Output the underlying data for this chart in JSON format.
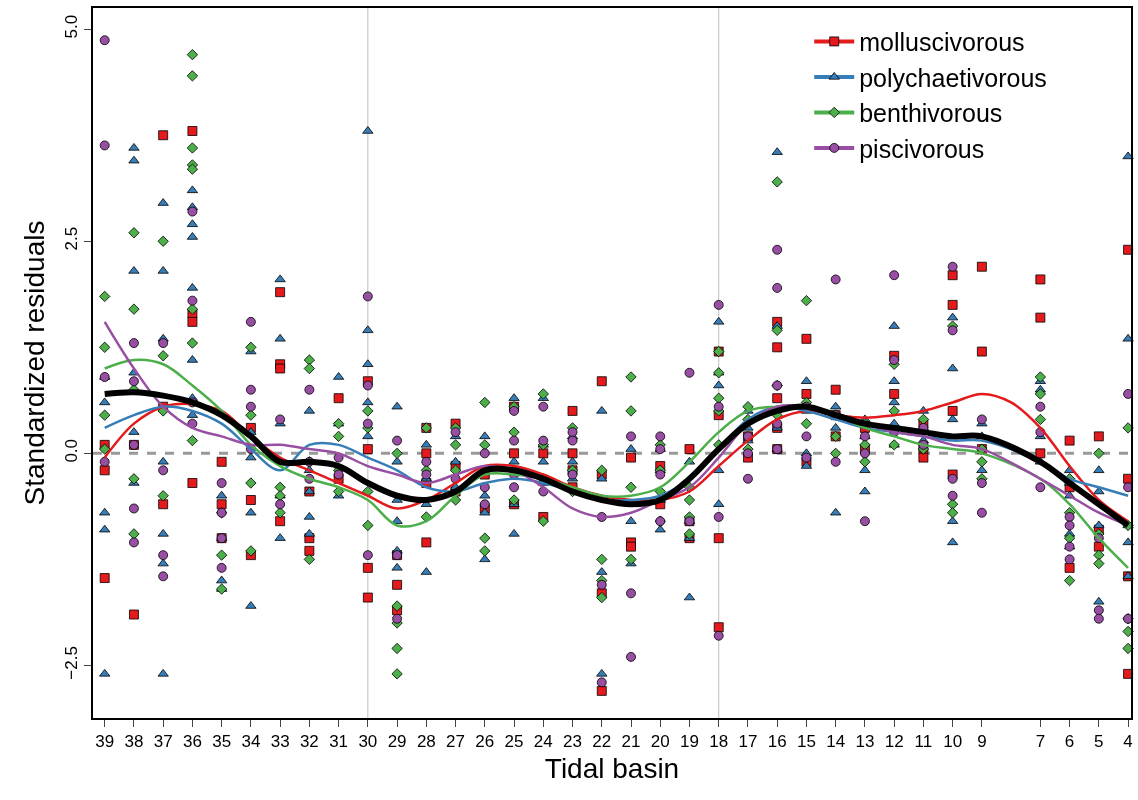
{
  "chart_data": {
    "type": "scatter",
    "xlabel": "Tidal basin",
    "ylabel": "Standardized residuals",
    "xlim": [
      39.4,
      3.9
    ],
    "xticks": [
      39,
      38,
      37,
      36,
      35,
      34,
      33,
      32,
      31,
      30,
      29,
      28,
      27,
      26,
      25,
      24,
      23,
      22,
      21,
      20,
      19,
      18,
      17,
      16,
      15,
      14,
      13,
      12,
      11,
      10,
      9,
      7,
      6,
      5,
      4
    ],
    "ylim": [
      -3.12,
      5.25
    ],
    "yticks": [
      {
        "value": -2.5,
        "label": "−2.5"
      },
      {
        "value": 0,
        "label": "0.0"
      },
      {
        "value": 2.5,
        "label": "2.5"
      },
      {
        "value": 5,
        "label": "5.0"
      }
    ],
    "grid": false,
    "legend": "top right",
    "ref_lines": [
      {
        "axis": "x",
        "value": 30,
        "color": "#bebebe",
        "line_style": "solid"
      },
      {
        "axis": "x",
        "value": 18,
        "color": "#bebebe",
        "line_style": "solid"
      },
      {
        "axis": "y",
        "value": 0,
        "color": "#999999",
        "line_style": "dashed"
      }
    ],
    "series": [
      {
        "name": "molluscivorous",
        "color": "#e41a1c",
        "marker": "square",
        "x": [
          39,
          39,
          39,
          38,
          38,
          37,
          37,
          37,
          36,
          36,
          36,
          36,
          35,
          35,
          35,
          34,
          34,
          34,
          33,
          33,
          33,
          33,
          32,
          32,
          32,
          31,
          31,
          30,
          30,
          30,
          30,
          29,
          29,
          29,
          28,
          28,
          28,
          28,
          27,
          27,
          27,
          26,
          26,
          25,
          25,
          25,
          24,
          24,
          23,
          23,
          23,
          23,
          22,
          22,
          22,
          22,
          21,
          21,
          21,
          20,
          20,
          19,
          19,
          19,
          18,
          18,
          18,
          18,
          17,
          17,
          16,
          16,
          16,
          16,
          16,
          15,
          15,
          15,
          14,
          14,
          14,
          13,
          13,
          12,
          12,
          11,
          11,
          11,
          10,
          10,
          10,
          10,
          9,
          9,
          9,
          7,
          7,
          7,
          6,
          6,
          6,
          5,
          5,
          5,
          4,
          4,
          4,
          4
        ],
        "values": [
          -0.2,
          -1.47,
          0.1,
          -1.9,
          0.1,
          3.75,
          -0.6,
          0.55,
          3.8,
          1.65,
          1.55,
          -0.35,
          -0.1,
          -0.6,
          -1.0,
          -0.55,
          -1.2,
          0.3,
          1.9,
          1.05,
          1.0,
          -0.8,
          -0.45,
          -1.0,
          -1.15,
          0.65,
          -0.3,
          0.85,
          0.05,
          -1.35,
          -1.7,
          -1.2,
          -1.55,
          -1.85,
          0.3,
          0.0,
          -0.35,
          -1.05,
          0.35,
          -0.15,
          -0.45,
          -0.25,
          -0.65,
          0.55,
          0.0,
          -0.6,
          0.0,
          -0.75,
          0.5,
          0.0,
          -0.2,
          -0.4,
          0.85,
          -0.25,
          -1.65,
          -2.8,
          -0.05,
          -1.05,
          -1.1,
          -0.15,
          -0.6,
          0.05,
          -0.8,
          -1.0,
          1.2,
          0.45,
          -1.0,
          -2.05,
          0.2,
          -0.05,
          1.55,
          1.25,
          0.65,
          0.3,
          0.05,
          1.35,
          0.7,
          -0.1,
          0.75,
          0.45,
          0.2,
          0.05,
          0.3,
          1.15,
          0.7,
          0.35,
          0.05,
          -0.05,
          2.1,
          1.75,
          0.5,
          -0.25,
          2.2,
          1.2,
          0.05,
          2.05,
          1.6,
          0.0,
          0.15,
          -0.4,
          -1.35,
          0.2,
          -0.9,
          -1.1,
          2.4,
          -0.3,
          -1.45,
          -2.6
        ]
      },
      {
        "name": "polychaetivorous",
        "color": "#377eb8",
        "marker": "triangle",
        "x": [
          39,
          39,
          39,
          39,
          39,
          38,
          38,
          38,
          38,
          38,
          38,
          37,
          37,
          37,
          37,
          37,
          37,
          37,
          36,
          36,
          36,
          36,
          36,
          36,
          36,
          36,
          35,
          35,
          35,
          35,
          34,
          34,
          34,
          34,
          34,
          33,
          33,
          33,
          33,
          33,
          32,
          32,
          32,
          32,
          32,
          31,
          31,
          31,
          30,
          30,
          30,
          30,
          30,
          29,
          29,
          29,
          29,
          29,
          29,
          28,
          28,
          28,
          28,
          27,
          27,
          27,
          26,
          26,
          26,
          26,
          25,
          25,
          25,
          25,
          24,
          24,
          24,
          24,
          23,
          23,
          23,
          22,
          22,
          22,
          22,
          21,
          21,
          21,
          20,
          20,
          20,
          20,
          19,
          19,
          19,
          19,
          18,
          18,
          18,
          18,
          18,
          17,
          17,
          17,
          16,
          16,
          16,
          16,
          15,
          15,
          15,
          15,
          14,
          14,
          14,
          13,
          13,
          13,
          13,
          12,
          12,
          12,
          12,
          12,
          11,
          11,
          11,
          10,
          10,
          10,
          10,
          10,
          9,
          9,
          9,
          7,
          7,
          7,
          7,
          6,
          6,
          6,
          6,
          6,
          5,
          5,
          5,
          5,
          4,
          4,
          4,
          4,
          4
        ],
        "values": [
          0.9,
          0.6,
          -0.7,
          -0.9,
          -2.6,
          3.6,
          3.45,
          2.15,
          0.95,
          0.25,
          -0.35,
          2.95,
          2.15,
          1.35,
          -0.1,
          -0.95,
          -1.3,
          -2.6,
          3.1,
          2.9,
          2.7,
          2.55,
          1.95,
          1.1,
          0.65,
          0.45,
          -0.5,
          -1.0,
          -1.5,
          -1.6,
          1.2,
          0.25,
          -0.05,
          -0.7,
          -1.8,
          2.05,
          1.35,
          0.35,
          -0.5,
          -1.0,
          0.5,
          -0.2,
          -0.45,
          -0.75,
          -0.95,
          0.9,
          0.35,
          -0.5,
          3.8,
          1.45,
          1.05,
          0.6,
          0.2,
          0.55,
          -0.1,
          -0.55,
          -0.8,
          -1.15,
          -1.35,
          0.1,
          -0.3,
          -0.6,
          -1.4,
          0.2,
          -0.1,
          -0.4,
          0.2,
          -0.5,
          -0.7,
          -1.25,
          0.65,
          -0.1,
          -0.6,
          -0.95,
          0.65,
          0.1,
          -0.1,
          -0.35,
          0.2,
          -0.1,
          -0.3,
          0.5,
          -0.3,
          -1.4,
          -2.6,
          0.05,
          -0.8,
          -1.3,
          0.05,
          -0.2,
          -0.55,
          -0.9,
          -0.1,
          -0.8,
          -1.0,
          -1.7,
          1.55,
          0.95,
          0.8,
          -0.2,
          -0.6,
          0.5,
          0.3,
          0.15,
          3.55,
          1.5,
          0.3,
          0.05,
          0.85,
          0.5,
          0.0,
          -0.15,
          0.55,
          0.3,
          -0.7,
          0.4,
          0.2,
          -0.2,
          -0.45,
          1.5,
          0.85,
          0.6,
          0.35,
          0.1,
          0.5,
          0.3,
          0.15,
          1.6,
          1.0,
          0.4,
          -0.8,
          -1.05,
          0.35,
          0.2,
          -0.2,
          0.85,
          0.75,
          0.2,
          -0.1,
          -0.2,
          -0.35,
          -0.5,
          -0.95,
          -1.1,
          -0.2,
          -0.45,
          -0.85,
          -1.75,
          3.5,
          1.35,
          -0.85,
          -1.05,
          -1.45
        ]
      },
      {
        "name": "benthivorous",
        "color": "#4daf4a",
        "marker": "diamond",
        "x": [
          39,
          39,
          39,
          39,
          38,
          38,
          38,
          38,
          38,
          37,
          37,
          37,
          37,
          36,
          36,
          36,
          36,
          36,
          36,
          36,
          36,
          35,
          35,
          35,
          34,
          34,
          34,
          34,
          33,
          33,
          33,
          32,
          32,
          32,
          32,
          31,
          31,
          31,
          31,
          30,
          30,
          30,
          30,
          29,
          29,
          29,
          29,
          29,
          28,
          28,
          28,
          27,
          27,
          27,
          27,
          26,
          26,
          26,
          26,
          25,
          25,
          25,
          25,
          24,
          24,
          24,
          24,
          23,
          23,
          23,
          22,
          22,
          22,
          22,
          21,
          21,
          21,
          21,
          20,
          20,
          20,
          20,
          19,
          19,
          19,
          19,
          18,
          18,
          18,
          18,
          18,
          17,
          17,
          17,
          16,
          16,
          16,
          16,
          15,
          15,
          15,
          14,
          14,
          14,
          13,
          13,
          13,
          12,
          12,
          12,
          11,
          11,
          10,
          10,
          10,
          9,
          9,
          9,
          7,
          7,
          7,
          6,
          6,
          6,
          6,
          5,
          5,
          5,
          5,
          4,
          4,
          4,
          4,
          4
        ],
        "values": [
          1.85,
          1.25,
          0.45,
          0.05,
          2.6,
          1.7,
          0.75,
          -0.3,
          -0.95,
          2.5,
          1.15,
          0.5,
          -0.5,
          4.7,
          4.45,
          3.6,
          3.4,
          3.35,
          1.7,
          1.3,
          0.15,
          -0.7,
          -1.2,
          -1.6,
          1.25,
          0.45,
          -0.35,
          -1.15,
          -0.4,
          -0.5,
          -0.7,
          1.1,
          1.0,
          -0.1,
          -1.25,
          0.35,
          0.2,
          -0.2,
          -0.45,
          0.5,
          0.3,
          -0.45,
          -0.85,
          0.0,
          -1.8,
          -2.0,
          -2.3,
          -2.6,
          0.3,
          -0.2,
          -0.75,
          0.3,
          0.1,
          -0.2,
          -0.55,
          0.6,
          0.1,
          -1.0,
          -1.15,
          0.55,
          0.25,
          -0.2,
          -0.55,
          0.7,
          0.1,
          -0.3,
          -0.8,
          0.3,
          -0.2,
          -0.45,
          -0.2,
          -1.25,
          -1.5,
          -1.7,
          0.9,
          0.5,
          -0.4,
          -1.25,
          0.1,
          -0.2,
          -0.45,
          -0.8,
          -0.4,
          -0.55,
          -0.75,
          -0.95,
          1.2,
          0.95,
          0.65,
          0.5,
          0.1,
          0.55,
          0.4,
          0.05,
          3.2,
          1.45,
          0.8,
          0.45,
          1.8,
          0.6,
          0.35,
          0.45,
          0.2,
          0.0,
          0.35,
          0.1,
          -0.1,
          1.05,
          0.5,
          0.1,
          0.4,
          0.05,
          1.5,
          -0.6,
          -0.7,
          0.05,
          -0.1,
          -0.3,
          0.9,
          0.7,
          0.4,
          -0.3,
          -0.7,
          -1.0,
          -1.5,
          0.0,
          -0.95,
          -1.2,
          -1.3,
          0.3,
          -0.85,
          -1.95,
          -2.1,
          -2.3
        ]
      },
      {
        "name": "piscivorous",
        "color": "#984ea3",
        "marker": "circle",
        "x": [
          39,
          39,
          39,
          39,
          38,
          38,
          38,
          38,
          38,
          37,
          37,
          37,
          37,
          36,
          36,
          36,
          36,
          35,
          35,
          35,
          35,
          34,
          34,
          34,
          34,
          33,
          33,
          32,
          32,
          32,
          31,
          31,
          30,
          30,
          30,
          30,
          29,
          29,
          29,
          28,
          28,
          27,
          27,
          26,
          26,
          26,
          26,
          25,
          25,
          25,
          25,
          24,
          24,
          24,
          23,
          23,
          23,
          22,
          22,
          22,
          21,
          21,
          21,
          20,
          20,
          20,
          20,
          19,
          19,
          18,
          18,
          18,
          18,
          17,
          17,
          17,
          16,
          16,
          16,
          16,
          16,
          15,
          15,
          15,
          14,
          14,
          14,
          13,
          13,
          13,
          12,
          12,
          12,
          11,
          11,
          10,
          10,
          10,
          10,
          9,
          9,
          9,
          7,
          7,
          7,
          6,
          6,
          6,
          6,
          5,
          5,
          5,
          4,
          4,
          4
        ],
        "values": [
          4.87,
          3.63,
          0.9,
          -0.1,
          1.3,
          0.85,
          0.1,
          -0.65,
          -1.05,
          1.3,
          -0.2,
          -1.2,
          -1.45,
          2.85,
          1.8,
          0.6,
          0.35,
          -0.35,
          -0.7,
          -1.0,
          -1.35,
          1.55,
          0.75,
          0.55,
          0.05,
          0.4,
          -0.6,
          0.75,
          -0.1,
          -0.3,
          -0.05,
          -0.25,
          1.85,
          0.8,
          0.35,
          -1.2,
          0.15,
          -1.2,
          -1.95,
          -0.1,
          -0.25,
          0.25,
          -0.3,
          0.0,
          -0.2,
          -0.4,
          -0.6,
          0.5,
          0.15,
          -0.25,
          -0.4,
          0.55,
          0.15,
          -0.45,
          0.25,
          0.15,
          -0.25,
          -0.75,
          -1.55,
          -2.7,
          0.2,
          -1.65,
          -2.4,
          0.2,
          0.05,
          -0.25,
          -0.8,
          0.95,
          -0.8,
          1.75,
          0.55,
          -0.75,
          -2.15,
          0.2,
          0.0,
          -0.3,
          2.4,
          1.95,
          0.8,
          0.35,
          0.05,
          0.55,
          0.2,
          -0.05,
          2.05,
          0.45,
          -0.1,
          0.2,
          0.0,
          -0.8,
          2.1,
          1.1,
          0.25,
          0.3,
          0.1,
          2.2,
          1.45,
          -0.3,
          -0.5,
          0.4,
          -0.35,
          -0.7,
          0.55,
          0.25,
          -0.4,
          -0.75,
          -0.85,
          -1.1,
          -1.25,
          -1.0,
          -1.85,
          -1.95,
          0.7,
          -0.4,
          -1.95
        ]
      },
      {
        "type": "line",
        "color": "#e41a1c",
        "x": [
          39,
          38,
          37,
          36,
          35,
          34,
          33,
          32,
          31,
          30,
          29,
          28,
          27,
          26,
          25,
          24,
          23,
          22,
          21,
          20,
          19,
          18,
          17,
          16,
          15,
          14,
          13,
          12,
          11,
          10,
          9,
          8,
          7,
          6,
          5,
          4
        ],
        "values": [
          -0.05,
          0.35,
          0.55,
          0.58,
          0.5,
          0.2,
          -0.05,
          -0.2,
          -0.35,
          -0.5,
          -0.65,
          -0.55,
          -0.35,
          -0.15,
          -0.15,
          -0.25,
          -0.4,
          -0.5,
          -0.55,
          -0.55,
          -0.45,
          -0.15,
          0.15,
          0.4,
          0.5,
          0.45,
          0.42,
          0.45,
          0.5,
          0.6,
          0.7,
          0.6,
          0.3,
          -0.15,
          -0.55,
          -0.8
        ]
      },
      {
        "type": "line",
        "color": "#377eb8",
        "x": [
          39,
          38,
          37,
          36,
          35,
          34,
          33,
          32,
          31,
          30,
          29,
          28,
          27,
          26,
          25,
          24,
          23,
          22,
          21,
          20,
          19,
          18,
          17,
          16,
          15,
          14,
          13,
          12,
          11,
          10,
          9,
          7,
          6,
          5,
          4
        ],
        "values": [
          0.3,
          0.45,
          0.55,
          0.5,
          0.35,
          0.05,
          -0.2,
          0.1,
          0.1,
          -0.05,
          -0.2,
          -0.4,
          -0.45,
          -0.35,
          -0.3,
          -0.35,
          -0.45,
          -0.55,
          -0.55,
          -0.5,
          -0.3,
          0.05,
          0.4,
          0.55,
          0.5,
          0.4,
          0.3,
          0.25,
          0.2,
          0.15,
          0.15,
          -0.1,
          -0.3,
          -0.4,
          -0.5
        ]
      },
      {
        "type": "line",
        "color": "#4daf4a",
        "x": [
          39,
          38,
          37,
          36,
          35,
          34,
          33,
          32,
          31,
          30,
          29,
          28,
          27,
          26,
          25,
          24,
          23,
          22,
          21,
          20,
          19,
          18,
          17,
          16,
          15,
          14,
          13,
          12,
          11,
          10,
          9,
          7,
          6,
          5,
          4
        ],
        "values": [
          1.0,
          1.1,
          1.05,
          0.8,
          0.5,
          0.1,
          -0.15,
          -0.3,
          -0.4,
          -0.55,
          -0.85,
          -0.8,
          -0.5,
          -0.25,
          -0.25,
          -0.3,
          -0.4,
          -0.5,
          -0.5,
          -0.4,
          -0.1,
          0.25,
          0.5,
          0.55,
          0.55,
          0.45,
          0.3,
          0.2,
          0.1,
          0.05,
          0.0,
          -0.3,
          -0.6,
          -1.0,
          -1.35
        ]
      },
      {
        "type": "line",
        "color": "#984ea3",
        "x": [
          39,
          38,
          37,
          36,
          35,
          34,
          33,
          32,
          31,
          30,
          29,
          28,
          27,
          26,
          25,
          24,
          23,
          22,
          21,
          20,
          19,
          18,
          17,
          16,
          15,
          14,
          13,
          12,
          11,
          10,
          9,
          7,
          6,
          5,
          4
        ],
        "values": [
          1.55,
          1.0,
          0.55,
          0.3,
          0.2,
          0.1,
          0.1,
          0.05,
          0.0,
          -0.15,
          -0.25,
          -0.35,
          -0.25,
          -0.15,
          -0.2,
          -0.4,
          -0.65,
          -0.75,
          -0.7,
          -0.55,
          -0.4,
          -0.05,
          0.35,
          0.55,
          0.55,
          0.45,
          0.35,
          0.25,
          0.2,
          0.1,
          0.05,
          -0.3,
          -0.5,
          -0.7,
          -0.85
        ]
      },
      {
        "type": "line",
        "color": "#000000",
        "x": [
          39,
          38,
          37,
          36,
          35,
          34,
          33,
          32,
          31,
          30,
          29,
          28,
          27,
          26,
          25,
          24,
          23,
          22,
          21,
          20,
          19,
          18,
          17,
          16,
          15,
          14,
          13,
          12,
          11,
          10,
          9,
          7,
          6,
          5,
          4
        ],
        "values": [
          0.7,
          0.72,
          0.68,
          0.6,
          0.45,
          0.2,
          -0.1,
          -0.1,
          -0.15,
          -0.35,
          -0.5,
          -0.55,
          -0.45,
          -0.2,
          -0.2,
          -0.3,
          -0.45,
          -0.55,
          -0.6,
          -0.55,
          -0.3,
          0.05,
          0.35,
          0.5,
          0.55,
          0.45,
          0.35,
          0.3,
          0.25,
          0.2,
          0.2,
          -0.1,
          -0.35,
          -0.6,
          -0.85
        ]
      }
    ]
  }
}
